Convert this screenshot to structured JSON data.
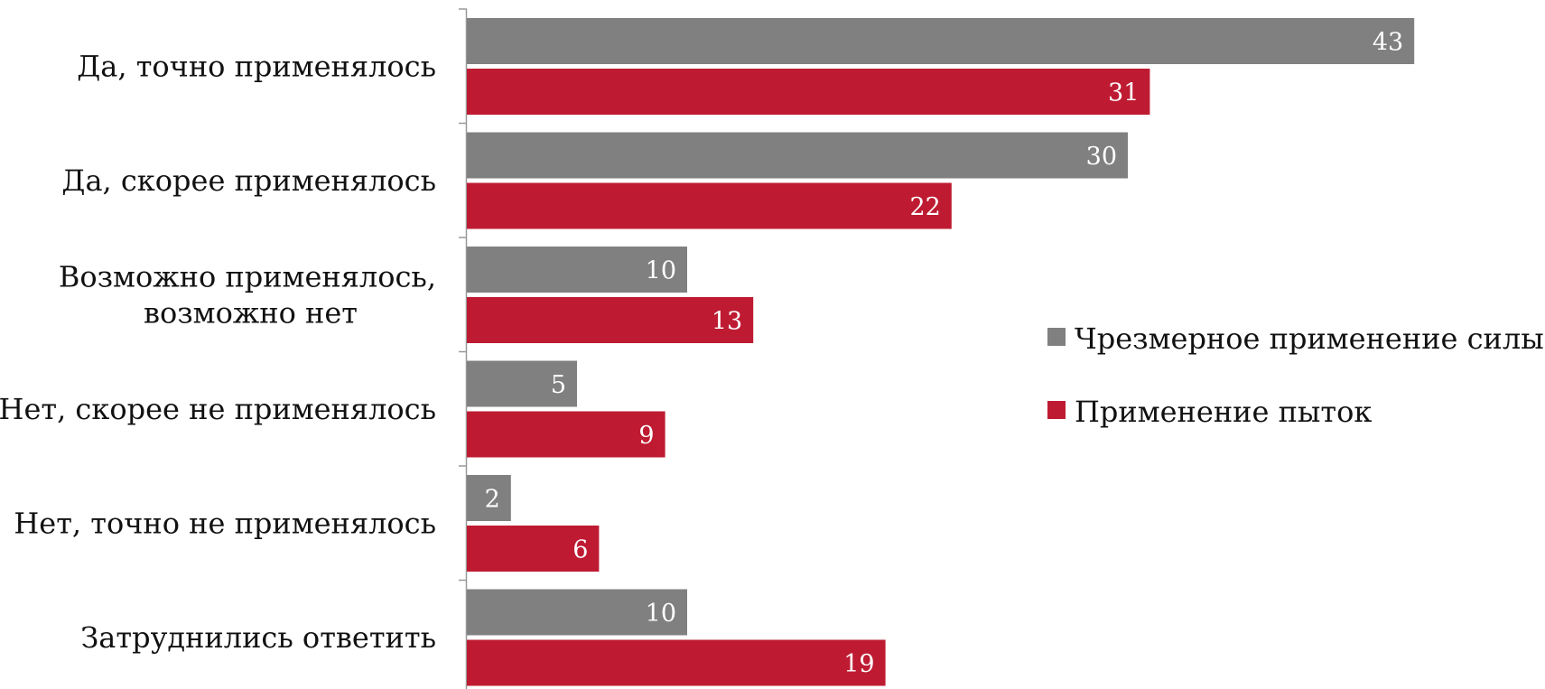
{
  "chart_data": {
    "type": "bar",
    "orientation": "horizontal",
    "categories": [
      [
        "Да, точно применялось"
      ],
      [
        "Да, скорее применялось"
      ],
      [
        "Возможно применялось,",
        "возможно нет"
      ],
      [
        "Нет, скорее не применялось"
      ],
      [
        "Нет, точно не применялось"
      ],
      [
        "Затруднились ответить"
      ]
    ],
    "series": [
      {
        "name": "Чрезмерное применение силы",
        "color": "#808080",
        "values": [
          43,
          30,
          10,
          5,
          2,
          10
        ]
      },
      {
        "name": "Применение пыток",
        "color": "#be1b32",
        "values": [
          31,
          22,
          13,
          9,
          6,
          19
        ]
      }
    ],
    "xlim": [
      0,
      43
    ],
    "grid": false,
    "data_labels": true,
    "legend_position": "right"
  }
}
